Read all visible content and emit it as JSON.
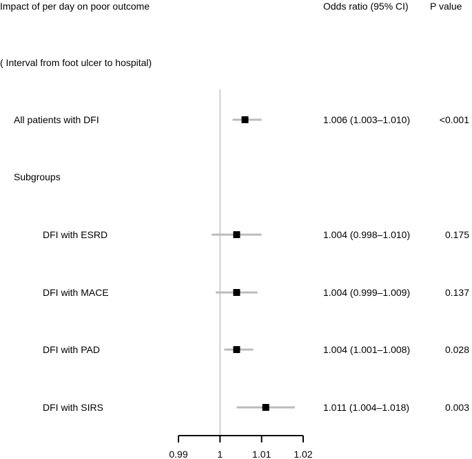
{
  "header": {
    "title": "Impact of per day on poor outcome",
    "col_or": "Odds ratio (95% CI)",
    "col_p": "P value",
    "subtitle": "( Interval from foot ulcer to hospital)"
  },
  "chart_data": {
    "type": "forest",
    "reference_line": 1,
    "xlim": [
      0.99,
      1.02
    ],
    "xticks": [
      0.99,
      1,
      1.01,
      1.02
    ],
    "xtick_labels": [
      "0.99",
      "1",
      "1.01",
      "1.02"
    ],
    "sections": {
      "subgroups_label": "Subgroups"
    },
    "rows": [
      {
        "label": "All patients with DFI",
        "or": 1.006,
        "lo": 1.003,
        "hi": 1.01,
        "or_text": "1.006 (1.003–1.010)",
        "p": "<0.001",
        "indent": false
      },
      {
        "label": "DFI with ESRD",
        "or": 1.004,
        "lo": 0.998,
        "hi": 1.01,
        "or_text": "1.004 (0.998–1.010)",
        "p": "0.175",
        "indent": true
      },
      {
        "label": "DFI with MACE",
        "or": 1.004,
        "lo": 0.999,
        "hi": 1.009,
        "or_text": "1.004 (0.999–1.009)",
        "p": "0.137",
        "indent": true
      },
      {
        "label": "DFI with PAD",
        "or": 1.004,
        "lo": 1.001,
        "hi": 1.008,
        "or_text": "1.004 (1.001–1.008)",
        "p": "0.028",
        "indent": true
      },
      {
        "label": "DFI with SIRS",
        "or": 1.011,
        "lo": 1.004,
        "hi": 1.018,
        "or_text": "1.011 (1.004–1.018)",
        "p": "0.003",
        "indent": true
      }
    ],
    "colors": {
      "ci_line": "#bbbbbb",
      "marker": "#000000",
      "ref_line": "#bbbbbb",
      "axis": "#000000"
    }
  }
}
